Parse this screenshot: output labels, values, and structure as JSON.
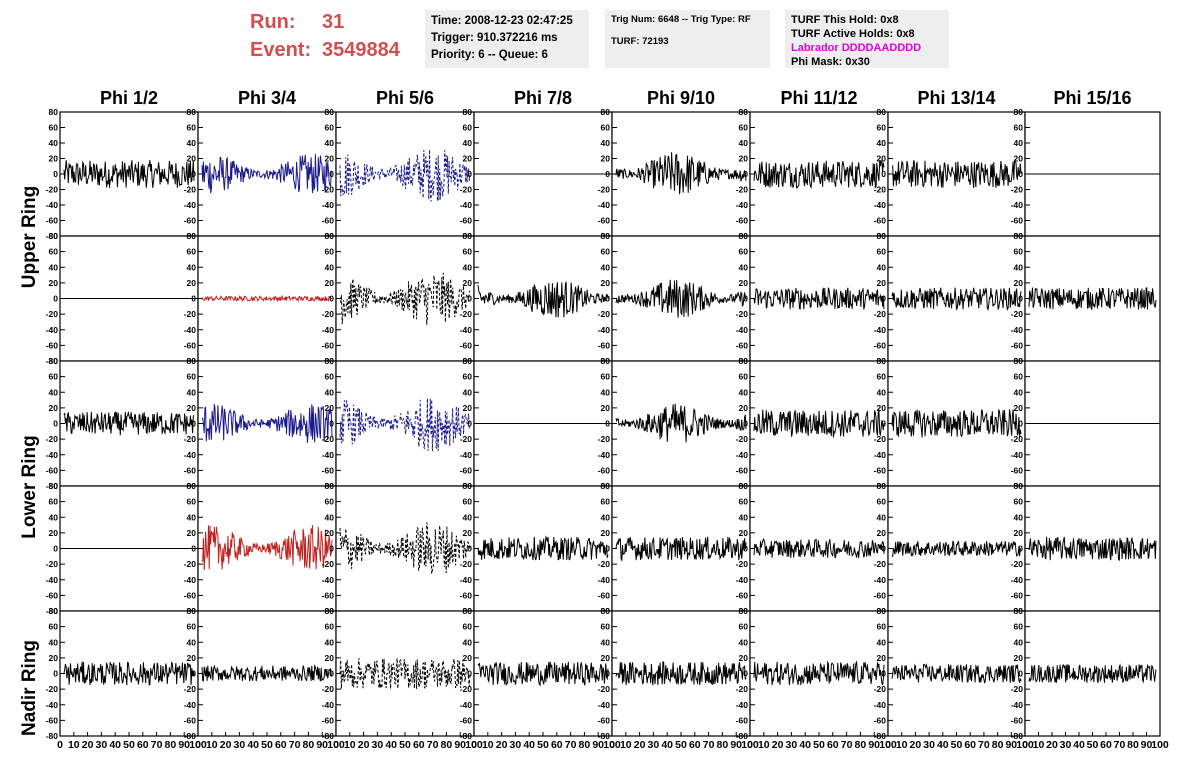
{
  "header": {
    "run_label": "Run:",
    "run_value": "31",
    "event_label": "Event:",
    "event_value": "3549884",
    "time": "Time: 2008-12-23 02:47:25",
    "trigger": "Trigger: 910.372216 ms",
    "priority": "Priority: 6 -- Queue: 6",
    "trig_num": "Trig Num: 6648 -- Trig Type: RF",
    "turf": "TURF: 72193",
    "turf_this_hold": "TURF This Hold: 0x8",
    "turf_active_holds": "TURF Active Holds: 0x8",
    "labrador": "Labrador DDDDAADDDD",
    "phi_mask": "Phi Mask: 0x30"
  },
  "ring_labels": {
    "upper": "Upper Ring",
    "lower": "Lower Ring",
    "nadir": "Nadir Ring"
  },
  "colors": {
    "run_text": "#d05050",
    "info_bg": "#eeeeee",
    "labrador_text": "#e000e0",
    "black_trace": "#000000",
    "blue_trace": "#1a1a8c",
    "red_trace": "#c02020"
  },
  "chart_data": {
    "type": "line",
    "description_source": "grid of waveform panels, 5 rows x 8 columns",
    "columns": [
      "Phi 1/2",
      "Phi 3/4",
      "Phi 5/6",
      "Phi 7/8",
      "Phi 9/10",
      "Phi 11/12",
      "Phi 13/14",
      "Phi 15/16"
    ],
    "ylim": [
      -80,
      80
    ],
    "y_ticks": [
      80,
      60,
      40,
      20,
      0,
      -20,
      -40,
      -60,
      -80
    ],
    "x_tick_labels": [
      "0",
      "10",
      "20",
      "30",
      "40",
      "50",
      "60",
      "70",
      "80",
      "90",
      "100"
    ],
    "xlim": [
      0,
      100
    ],
    "rows": [
      {
        "ring": "upper",
        "panels": [
          {
            "style": "solid",
            "color": "black",
            "amplitude": 18
          },
          {
            "style": "solid",
            "color": "blue",
            "amplitude": 22
          },
          {
            "style": "dashed",
            "color": "blue",
            "amplitude": 30
          },
          {
            "style": "flat",
            "color": "black",
            "amplitude": 0
          },
          {
            "style": "solid",
            "color": "black",
            "amplitude": 25
          },
          {
            "style": "solid",
            "color": "black",
            "amplitude": 18
          },
          {
            "style": "solid",
            "color": "black",
            "amplitude": 18
          },
          {
            "style": "flat",
            "color": "black",
            "amplitude": 0
          }
        ]
      },
      {
        "ring": "upper",
        "panels": [
          {
            "style": "flat",
            "color": "black",
            "amplitude": 0
          },
          {
            "style": "solid",
            "color": "red",
            "amplitude": 3
          },
          {
            "style": "dashed",
            "color": "black",
            "amplitude": 30
          },
          {
            "style": "solid",
            "color": "black",
            "amplitude": 22
          },
          {
            "style": "solid",
            "color": "black",
            "amplitude": 22
          },
          {
            "style": "solid",
            "color": "black",
            "amplitude": 14
          },
          {
            "style": "solid",
            "color": "black",
            "amplitude": 14
          },
          {
            "style": "solid",
            "color": "black",
            "amplitude": 14
          }
        ]
      },
      {
        "ring": "lower",
        "panels": [
          {
            "style": "solid",
            "color": "black",
            "amplitude": 15
          },
          {
            "style": "solid",
            "color": "blue",
            "amplitude": 22
          },
          {
            "style": "dashed",
            "color": "blue",
            "amplitude": 30
          },
          {
            "style": "flat",
            "color": "black",
            "amplitude": 0
          },
          {
            "style": "solid",
            "color": "black",
            "amplitude": 22
          },
          {
            "style": "solid",
            "color": "black",
            "amplitude": 18
          },
          {
            "style": "solid",
            "color": "black",
            "amplitude": 18
          },
          {
            "style": "flat",
            "color": "black",
            "amplitude": 0
          }
        ]
      },
      {
        "ring": "lower",
        "panels": [
          {
            "style": "flat",
            "color": "black",
            "amplitude": 0
          },
          {
            "style": "solid",
            "color": "red",
            "amplitude": 25
          },
          {
            "style": "dashed",
            "color": "black",
            "amplitude": 30
          },
          {
            "style": "solid",
            "color": "black",
            "amplitude": 15
          },
          {
            "style": "solid",
            "color": "black",
            "amplitude": 15
          },
          {
            "style": "solid",
            "color": "black",
            "amplitude": 12
          },
          {
            "style": "solid",
            "color": "black",
            "amplitude": 10
          },
          {
            "style": "solid",
            "color": "black",
            "amplitude": 15
          }
        ]
      },
      {
        "ring": "nadir",
        "panels": [
          {
            "style": "solid",
            "color": "black",
            "amplitude": 15
          },
          {
            "style": "solid",
            "color": "black",
            "amplitude": 10
          },
          {
            "style": "dashed",
            "color": "black",
            "amplitude": 20
          },
          {
            "style": "solid",
            "color": "black",
            "amplitude": 15
          },
          {
            "style": "solid",
            "color": "black",
            "amplitude": 15
          },
          {
            "style": "solid",
            "color": "black",
            "amplitude": 15
          },
          {
            "style": "solid",
            "color": "black",
            "amplitude": 12
          },
          {
            "style": "solid",
            "color": "black",
            "amplitude": 12
          }
        ]
      }
    ]
  }
}
